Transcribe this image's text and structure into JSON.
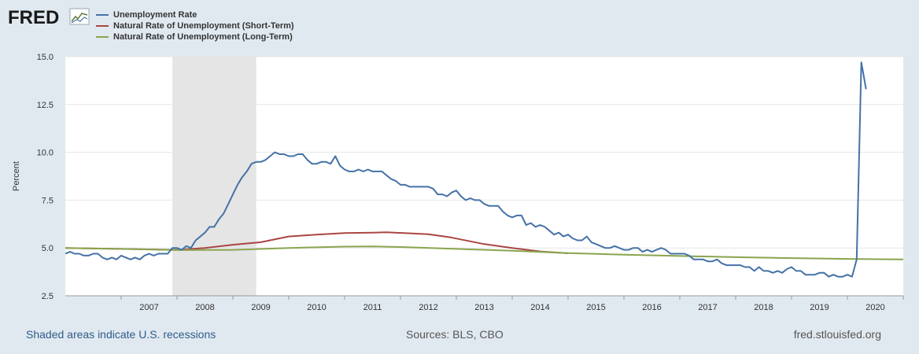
{
  "logo": {
    "text": "FRED"
  },
  "footer": {
    "recession_note": "Shaded areas indicate U.S. recessions",
    "sources": "Sources: BLS, CBO",
    "site": "fred.stlouisfed.org"
  },
  "chart_data": {
    "type": "line",
    "xlabel": "",
    "ylabel": "Percent",
    "xlim": [
      2006.0,
      2021.0
    ],
    "ylim": [
      2.5,
      15.0
    ],
    "yticks": [
      "2.5",
      "5.0",
      "7.5",
      "10.0",
      "12.5",
      "15.0"
    ],
    "xticks": [
      "2007",
      "2008",
      "2009",
      "2010",
      "2011",
      "2012",
      "2013",
      "2014",
      "2015",
      "2016",
      "2017",
      "2018",
      "2019",
      "2020"
    ],
    "grid": true,
    "legend_position": "top-left",
    "recessions": [
      {
        "start": 2007.917,
        "end": 2009.417
      }
    ],
    "series": [
      {
        "name": "Unemployment Rate",
        "color": "#4572a7",
        "x_start": 2006.0,
        "step": 0.0833333,
        "values": [
          4.7,
          4.8,
          4.7,
          4.7,
          4.6,
          4.6,
          4.7,
          4.7,
          4.5,
          4.4,
          4.5,
          4.4,
          4.6,
          4.5,
          4.4,
          4.5,
          4.4,
          4.6,
          4.7,
          4.6,
          4.7,
          4.7,
          4.7,
          5.0,
          5.0,
          4.9,
          5.1,
          5.0,
          5.4,
          5.6,
          5.8,
          6.1,
          6.1,
          6.5,
          6.8,
          7.3,
          7.8,
          8.3,
          8.7,
          9.0,
          9.4,
          9.5,
          9.5,
          9.6,
          9.8,
          10.0,
          9.9,
          9.9,
          9.8,
          9.8,
          9.9,
          9.9,
          9.6,
          9.4,
          9.4,
          9.5,
          9.5,
          9.4,
          9.8,
          9.3,
          9.1,
          9.0,
          9.0,
          9.1,
          9.0,
          9.1,
          9.0,
          9.0,
          9.0,
          8.8,
          8.6,
          8.5,
          8.3,
          8.3,
          8.2,
          8.2,
          8.2,
          8.2,
          8.2,
          8.1,
          7.8,
          7.8,
          7.7,
          7.9,
          8.0,
          7.7,
          7.5,
          7.6,
          7.5,
          7.5,
          7.3,
          7.2,
          7.2,
          7.2,
          6.9,
          6.7,
          6.6,
          6.7,
          6.7,
          6.2,
          6.3,
          6.1,
          6.2,
          6.1,
          5.9,
          5.7,
          5.8,
          5.6,
          5.7,
          5.5,
          5.4,
          5.4,
          5.6,
          5.3,
          5.2,
          5.1,
          5.0,
          5.0,
          5.1,
          5.0,
          4.9,
          4.9,
          5.0,
          5.0,
          4.8,
          4.9,
          4.8,
          4.9,
          5.0,
          4.9,
          4.7,
          4.7,
          4.7,
          4.7,
          4.6,
          4.4,
          4.4,
          4.4,
          4.3,
          4.3,
          4.4,
          4.2,
          4.1,
          4.1,
          4.1,
          4.1,
          4.0,
          4.0,
          3.8,
          4.0,
          3.8,
          3.8,
          3.7,
          3.8,
          3.7,
          3.9,
          4.0,
          3.8,
          3.8,
          3.6,
          3.6,
          3.6,
          3.7,
          3.7,
          3.5,
          3.6,
          3.5,
          3.5,
          3.6,
          3.5,
          4.4,
          14.7,
          13.3
        ]
      },
      {
        "name": "Natural Rate of Unemployment (Short-Term)",
        "color": "#aa4643",
        "points": [
          [
            2006.0,
            5.0
          ],
          [
            2007.0,
            4.95
          ],
          [
            2008.0,
            4.9
          ],
          [
            2008.5,
            5.0
          ],
          [
            2009.0,
            5.17
          ],
          [
            2009.5,
            5.3
          ],
          [
            2010.0,
            5.6
          ],
          [
            2010.5,
            5.7
          ],
          [
            2011.0,
            5.78
          ],
          [
            2011.5,
            5.8
          ],
          [
            2011.75,
            5.82
          ],
          [
            2012.5,
            5.72
          ],
          [
            2012.9,
            5.55
          ],
          [
            2013.5,
            5.2
          ],
          [
            2014.0,
            5.0
          ],
          [
            2014.5,
            4.82
          ],
          [
            2015.0,
            4.72
          ]
        ]
      },
      {
        "name": "Natural Rate of Unemployment (Long-Term)",
        "color": "#89a54e",
        "points": [
          [
            2006.0,
            5.0
          ],
          [
            2007.0,
            4.95
          ],
          [
            2008.0,
            4.89
          ],
          [
            2009.0,
            4.9
          ],
          [
            2010.0,
            5.0
          ],
          [
            2011.0,
            5.07
          ],
          [
            2011.5,
            5.08
          ],
          [
            2012.0,
            5.05
          ],
          [
            2013.0,
            4.95
          ],
          [
            2014.0,
            4.85
          ],
          [
            2015.0,
            4.73
          ],
          [
            2016.0,
            4.65
          ],
          [
            2017.0,
            4.58
          ],
          [
            2018.0,
            4.52
          ],
          [
            2019.0,
            4.47
          ],
          [
            2020.0,
            4.43
          ],
          [
            2021.0,
            4.4
          ]
        ]
      }
    ]
  }
}
